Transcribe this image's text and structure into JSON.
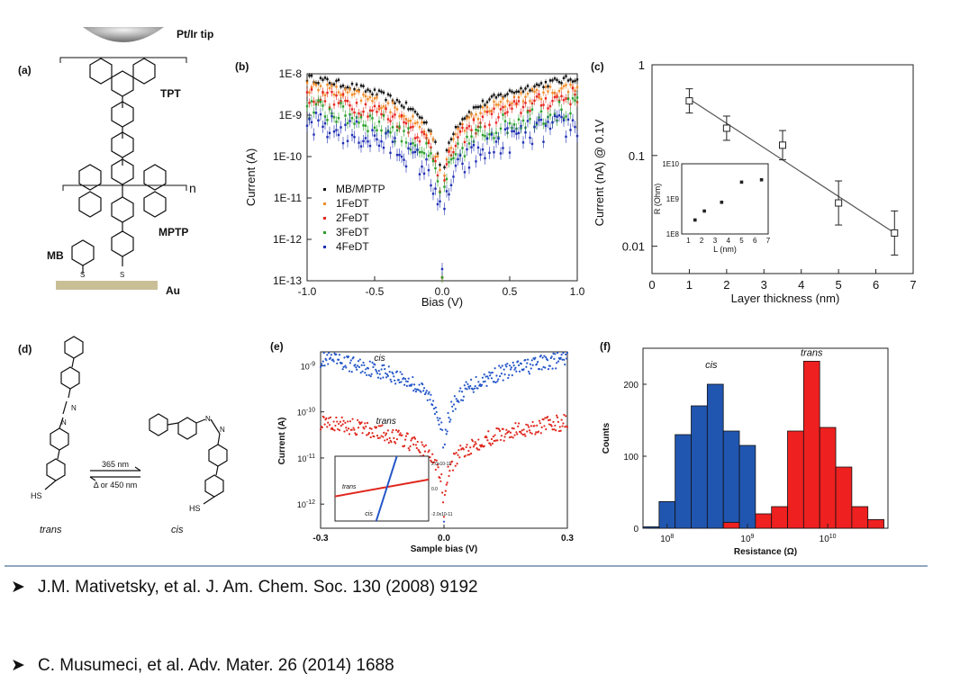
{
  "panel_a": {
    "label": "(a)",
    "tip": "Pt/Ir tip",
    "tpt": "TPT",
    "n": "n",
    "mptp": "MPTP",
    "mb": "MB",
    "au": "Au",
    "s1": "S",
    "s2": "S"
  },
  "panel_d": {
    "label": "(d)",
    "arrow_top": "365 nm",
    "arrow_bottom": "Δ or 450 nm",
    "trans": "trans",
    "cis": "cis",
    "hs1": "HS",
    "hs2": "HS"
  },
  "references": [
    "J.M. Mativetsky, et al. J. Am. Chem. Soc. 130 (2008) 9192",
    "C. Musumeci, et al. Adv. Mater. 26 (2014) 1688"
  ],
  "chart_data": [
    {
      "panel": "(b)",
      "type": "scatter",
      "xlabel": "Bias (V)",
      "ylabel": "Current (A)",
      "xlim": [
        -1.0,
        1.0
      ],
      "ylim": [
        1e-13,
        1e-08
      ],
      "yscale": "log",
      "x_ticks": [
        "-1.0",
        "-0.5",
        "0.0",
        "0.5",
        "1.0"
      ],
      "y_ticks": [
        "1E-8",
        "1E-9",
        "1E-10",
        "1E-11",
        "1E-12",
        "1E-13"
      ],
      "legend_position": "lower-left",
      "series": [
        {
          "name": "MB/MPTP",
          "color": "#111111",
          "edge": 8e-09
        },
        {
          "name": "1FeDT",
          "color": "#f28c28",
          "edge": 5e-09
        },
        {
          "name": "2FeDT",
          "color": "#e8261f",
          "edge": 3e-09
        },
        {
          "name": "3FeDT",
          "color": "#2aa02a",
          "edge": 1.5e-09
        },
        {
          "name": "4FeDT",
          "color": "#1f2fb4",
          "edge": 6e-10
        }
      ]
    },
    {
      "panel": "(c)",
      "type": "scatter",
      "xlabel": "Layer thickness (nm)",
      "ylabel": "Current (nA) @ 0.1V",
      "xlim": [
        0,
        7
      ],
      "ylim": [
        0.005,
        1
      ],
      "yscale": "log",
      "x_ticks": [
        "0",
        "1",
        "2",
        "3",
        "4",
        "5",
        "6",
        "7"
      ],
      "y_ticks": [
        "1",
        "0.1",
        "0.01"
      ],
      "points": [
        {
          "x": 1.0,
          "y": 0.4
        },
        {
          "x": 2.0,
          "y": 0.2
        },
        {
          "x": 3.5,
          "y": 0.13
        },
        {
          "x": 5.0,
          "y": 0.03
        },
        {
          "x": 6.5,
          "y": 0.014
        }
      ],
      "fit_line": [
        {
          "x": 1.0,
          "y": 0.42
        },
        {
          "x": 6.5,
          "y": 0.014
        }
      ],
      "inset": {
        "xlabel": "L (nm)",
        "ylabel": "R (Ohm)",
        "x_ticks": [
          "1",
          "2",
          "3",
          "4",
          "5",
          "6",
          "7"
        ],
        "y_ticks": [
          "1E10",
          "1E9",
          "1E8"
        ],
        "points": [
          {
            "x": 1.5,
            "y": 250000000.0
          },
          {
            "x": 2.2,
            "y": 450000000.0
          },
          {
            "x": 3.5,
            "y": 800000000.0
          },
          {
            "x": 5.0,
            "y": 3000000000.0
          },
          {
            "x": 6.5,
            "y": 3500000000.0
          }
        ]
      }
    },
    {
      "panel": "(e)",
      "type": "scatter",
      "xlabel": "Sample bias (V)",
      "ylabel": "Current (A)",
      "xlim": [
        -0.3,
        0.3
      ],
      "ylim": [
        3e-13,
        2e-09
      ],
      "yscale": "log",
      "x_ticks": [
        "-0.3",
        "0.0",
        "0.3"
      ],
      "y_ticks": [
        "10-9",
        "10-10",
        "10-11",
        "10-12"
      ],
      "series": [
        {
          "name": "cis",
          "color": "#2456c8",
          "edge": 1.4e-09
        },
        {
          "name": "trans",
          "color": "#e0281e",
          "edge": 6e-11
        }
      ],
      "inset": {
        "labels": [
          "trans",
          "cis"
        ],
        "y_ticks": [
          "2.0x10-11",
          "0.0",
          "-2.0x10-11"
        ]
      }
    },
    {
      "panel": "(f)",
      "type": "bar",
      "xlabel": "Resistance (Ω)",
      "ylabel": "Counts",
      "ylim": [
        0,
        250
      ],
      "y_ticks": [
        "0",
        "100",
        "200"
      ],
      "x_ticks": [
        "10",
        "10",
        "10"
      ],
      "x_tick_exponents": [
        "8",
        "9",
        "10"
      ],
      "series": [
        {
          "name": "cis",
          "color": "#2156b0",
          "bins": [
            [
              7.7,
              7.9,
              2
            ],
            [
              7.9,
              8.1,
              37
            ],
            [
              8.1,
              8.3,
              130
            ],
            [
              8.3,
              8.5,
              170
            ],
            [
              8.5,
              8.7,
              200
            ],
            [
              8.7,
              8.9,
              135
            ],
            [
              8.9,
              9.1,
              115
            ]
          ]
        },
        {
          "name": "trans",
          "color": "#ee2020",
          "bins": [
            [
              8.7,
              8.9,
              8
            ],
            [
              9.1,
              9.3,
              20
            ],
            [
              9.3,
              9.5,
              30
            ],
            [
              9.5,
              9.7,
              135
            ],
            [
              9.7,
              9.9,
              232
            ],
            [
              9.9,
              10.1,
              140
            ],
            [
              10.1,
              10.3,
              85
            ],
            [
              10.3,
              10.5,
              30
            ],
            [
              10.5,
              10.7,
              12
            ]
          ]
        }
      ]
    }
  ]
}
